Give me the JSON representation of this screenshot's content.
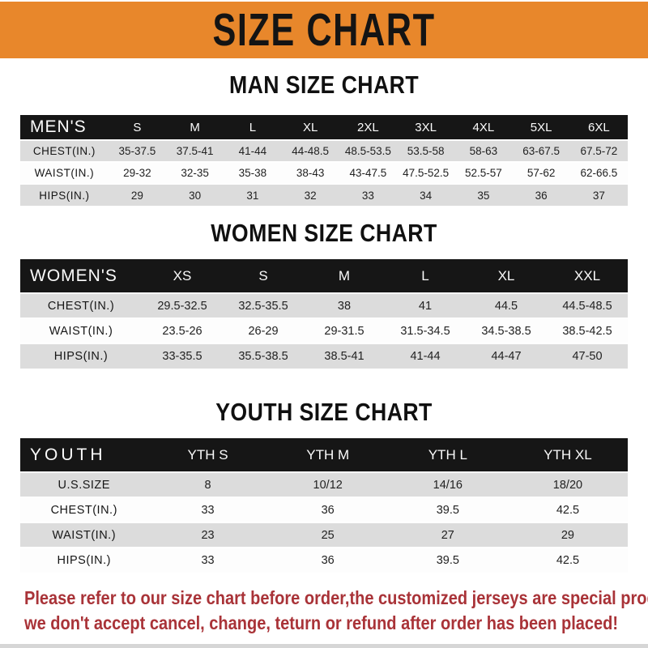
{
  "banner": {
    "title": "SIZE CHART",
    "bg_color": "#E8872B",
    "text_color": "#141414"
  },
  "colors": {
    "table_header_bar": "#161616",
    "table_header_text": "#FBFBFB",
    "row_shaded": "#DCDCDC",
    "row_plain": "#FDFDFD",
    "disclaimer_red": "#A93338"
  },
  "tables": [
    {
      "id": "men",
      "heading": "MAN SIZE CHART",
      "label": "MEN'S",
      "columns": [
        "S",
        "M",
        "L",
        "XL",
        "2XL",
        "3XL",
        "4XL",
        "5XL",
        "6XL"
      ],
      "rows": [
        {
          "label": "CHEST(IN.)",
          "values": [
            "35-37.5",
            "37.5-41",
            "41-44",
            "44-48.5",
            "48.5-53.5",
            "53.5-58",
            "58-63",
            "63-67.5",
            "67.5-72"
          ]
        },
        {
          "label": "WAIST(IN.)",
          "values": [
            "29-32",
            "32-35",
            "35-38",
            "38-43",
            "43-47.5",
            "47.5-52.5",
            "52.5-57",
            "57-62",
            "62-66.5"
          ]
        },
        {
          "label": "HIPS(IN.)",
          "values": [
            "29",
            "30",
            "31",
            "32",
            "33",
            "34",
            "35",
            "36",
            "37"
          ]
        }
      ]
    },
    {
      "id": "women",
      "heading": "WOMEN SIZE CHART",
      "label": "WOMEN'S",
      "columns": [
        "XS",
        "S",
        "M",
        "L",
        "XL",
        "XXL"
      ],
      "rows": [
        {
          "label": "CHEST(IN.)",
          "values": [
            "29.5-32.5",
            "32.5-35.5",
            "38",
            "41",
            "44.5",
            "44.5-48.5"
          ]
        },
        {
          "label": "WAIST(IN.)",
          "values": [
            "23.5-26",
            "26-29",
            "29-31.5",
            "31.5-34.5",
            "34.5-38.5",
            "38.5-42.5"
          ]
        },
        {
          "label": "HIPS(IN.)",
          "values": [
            "33-35.5",
            "35.5-38.5",
            "38.5-41",
            "41-44",
            "44-47",
            "47-50"
          ]
        }
      ]
    },
    {
      "id": "youth",
      "heading": "YOUTH SIZE CHART",
      "label": "YOUTH",
      "columns": [
        "YTH S",
        "YTH M",
        "YTH L",
        "YTH XL"
      ],
      "rows": [
        {
          "label": "U.S.SIZE",
          "values": [
            "8",
            "10/12",
            "14/16",
            "18/20"
          ]
        },
        {
          "label": "CHEST(IN.)",
          "values": [
            "33",
            "36",
            "39.5",
            "42.5"
          ]
        },
        {
          "label": "WAIST(IN.)",
          "values": [
            "23",
            "25",
            "27",
            "29"
          ]
        },
        {
          "label": "HIPS(IN.)",
          "values": [
            "33",
            "36",
            "39.5",
            "42.5"
          ]
        }
      ]
    }
  ],
  "disclaimer": {
    "line1": "Please refer to our size chart before order,the customized jerseys are special products,",
    "line2": "we don't accept cancel, change, teturn or refund after order has been placed!"
  }
}
